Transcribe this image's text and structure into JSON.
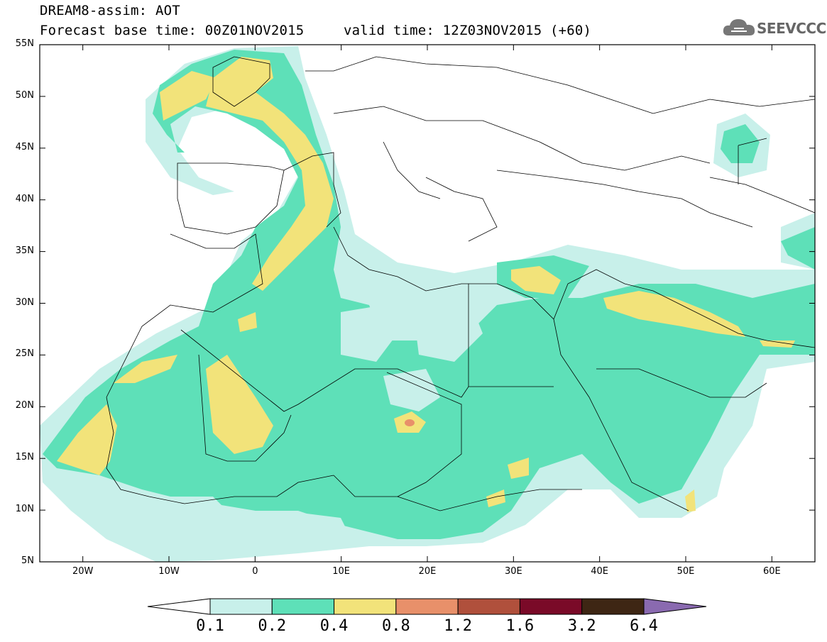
{
  "header": {
    "title": "DREAM8-assim: AOT",
    "base_time": "Forecast base time: 00Z01NOV2015",
    "valid_time": "valid time: 12Z03NOV2015 (+60)"
  },
  "logo": {
    "text": "SEEVCCC",
    "icon": "cloud-icon"
  },
  "map": {
    "lat_labels": [
      "55N",
      "50N",
      "45N",
      "40N",
      "35N",
      "30N",
      "25N",
      "20N",
      "15N",
      "10N",
      "5N"
    ],
    "lat_values": [
      55,
      50,
      45,
      40,
      35,
      30,
      25,
      20,
      15,
      10,
      5
    ],
    "lon_labels": [
      "20W",
      "10W",
      "0",
      "10E",
      "20E",
      "30E",
      "40E",
      "50E",
      "60E"
    ],
    "lon_values": [
      -20,
      -10,
      0,
      10,
      20,
      30,
      40,
      50,
      60
    ],
    "lon_range": [
      -25,
      65
    ],
    "lat_range": [
      5,
      55
    ],
    "ocean_color": "#ffffff",
    "border_color": "#000000"
  },
  "colorbar": {
    "labels": [
      "0.1",
      "0.2",
      "0.4",
      "0.8",
      "1.2",
      "1.6",
      "3.2",
      "6.4"
    ],
    "colors": [
      "#ffffff",
      "#c8f0ea",
      "#5ee0b8",
      "#f2e37a",
      "#e8906a",
      "#b0503c",
      "#7a0a28",
      "#3e2614",
      "#8a6ab0"
    ]
  }
}
